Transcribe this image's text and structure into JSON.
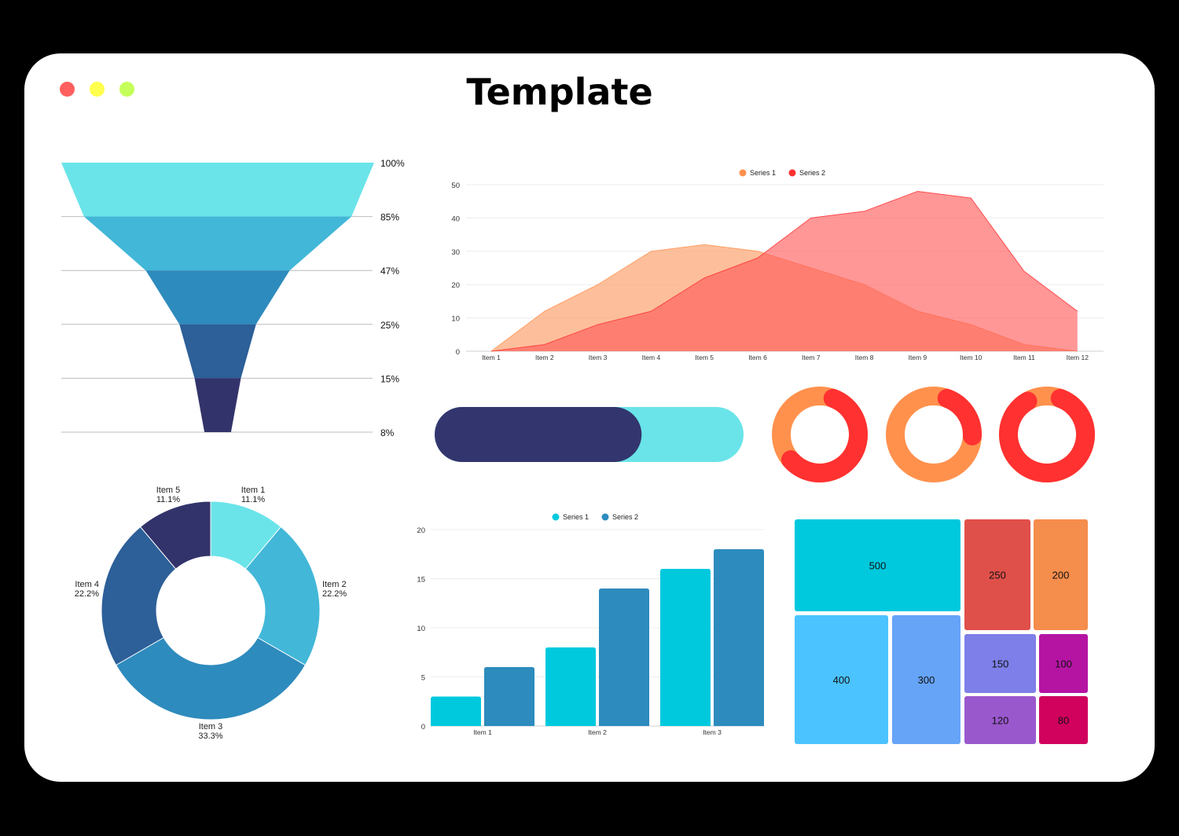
{
  "window": {
    "title": "Template",
    "controls": [
      {
        "name": "close",
        "color": "#ff5f5f"
      },
      {
        "name": "minimize",
        "color": "#ffff4d"
      },
      {
        "name": "maximize",
        "color": "#c5ff5a"
      }
    ]
  },
  "chart_data": [
    {
      "type": "funnel",
      "stages": [
        {
          "label": "100%",
          "value": 100,
          "color": "#6ae4e9"
        },
        {
          "label": "85%",
          "value": 85,
          "color": "#42b7d8"
        },
        {
          "label": "47%",
          "value": 47,
          "color": "#2e8bbd"
        },
        {
          "label": "25%",
          "value": 25,
          "color": "#2d5f98"
        },
        {
          "label": "15%",
          "value": 15,
          "color": "#33336b"
        },
        {
          "label": "8%",
          "value": 8
        }
      ]
    },
    {
      "type": "area",
      "categories": [
        "Item 1",
        "Item 2",
        "Item 3",
        "Item 4",
        "Item 5",
        "Item 6",
        "Item 7",
        "Item 8",
        "Item 9",
        "Item 10",
        "Item 11",
        "Item 12"
      ],
      "series": [
        {
          "name": "Series 1",
          "color": "#fcaa7a",
          "legend_color": "#ff914d",
          "values": [
            0,
            12,
            20,
            30,
            32,
            30,
            25,
            20,
            12,
            8,
            2,
            0
          ]
        },
        {
          "name": "Series 2",
          "color": "#ff5757",
          "legend_color": "#ff3131",
          "values": [
            0,
            2,
            8,
            12,
            22,
            28,
            40,
            42,
            48,
            46,
            24,
            12
          ]
        }
      ],
      "yticks": [
        0,
        10,
        20,
        30,
        40,
        50
      ],
      "ylim": [
        0,
        50
      ],
      "legend": "top-center",
      "grid": true
    },
    {
      "type": "progress",
      "value": 0.67,
      "color_fill": "#33366e",
      "color_track": "#6ae4e9"
    },
    {
      "type": "donut-gauges",
      "gauges": [
        {
          "value": 0.58,
          "color_value": "#ff3131",
          "color_track": "#ff914d"
        },
        {
          "value": 0.2,
          "color_value": "#ff3131",
          "color_track": "#ff914d"
        },
        {
          "value": 0.86,
          "color_value": "#ff3131",
          "color_track": "#ff914d"
        }
      ]
    },
    {
      "type": "pie",
      "slices": [
        {
          "label": "Item 1",
          "pct": "11.1%",
          "value": 11.1,
          "color": "#6ae4e9"
        },
        {
          "label": "Item 2",
          "pct": "22.2%",
          "value": 22.2,
          "color": "#42b7d8"
        },
        {
          "label": "Item 3",
          "pct": "33.3%",
          "value": 33.3,
          "color": "#2e8bbd"
        },
        {
          "label": "Item 4",
          "pct": "22.2%",
          "value": 22.2,
          "color": "#2d5f98"
        },
        {
          "label": "Item 5",
          "pct": "11.1%",
          "value": 11.1,
          "color": "#33336b"
        }
      ]
    },
    {
      "type": "bar",
      "categories": [
        "Item 1",
        "Item 2",
        "Item 3"
      ],
      "series": [
        {
          "name": "Series 1",
          "color": "#00c9de",
          "values": [
            3,
            8,
            16
          ]
        },
        {
          "name": "Series 2",
          "color": "#2d8bbd",
          "values": [
            6,
            14,
            18
          ]
        }
      ],
      "yticks": [
        0,
        5,
        10,
        15,
        20
      ],
      "ylim": [
        0,
        20
      ],
      "legend": "top-center",
      "grid": true
    },
    {
      "type": "treemap",
      "values": [
        500,
        400,
        300,
        250,
        200,
        150,
        100,
        120,
        80
      ],
      "colors": [
        "#00c9de",
        "#4bc3ff",
        "#66a4f8",
        "#e0504a",
        "#f58d4c",
        "#7e7fe8",
        "#b514a3",
        "#9a58cd",
        "#d0025e"
      ]
    }
  ]
}
